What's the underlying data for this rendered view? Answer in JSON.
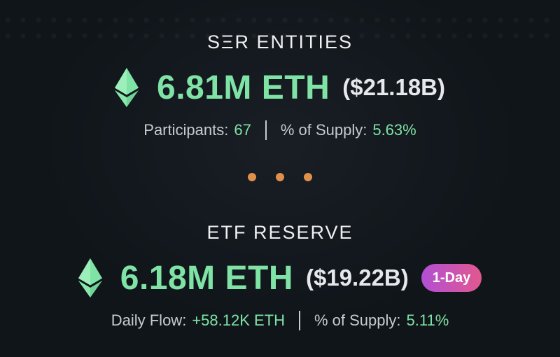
{
  "top": {
    "heading": "SΞR ENTITIES",
    "eth_amount": "6.81M ETH",
    "usd_amount": "($21.18B)",
    "stat1_label": "Participants:",
    "stat1_value": "67",
    "stat2_label": "% of Supply:",
    "stat2_value": "5.63%"
  },
  "bottom": {
    "heading": "ETF RESERVE",
    "eth_amount": "6.18M ETH",
    "usd_amount": "($19.22B)",
    "badge": "1-Day",
    "stat1_label": "Daily Flow:",
    "stat1_value": "+58.12K ETH",
    "stat2_label": "% of Supply:",
    "stat2_value": "5.11%"
  },
  "colors": {
    "accent_green": "#7fe3a6",
    "dot_orange": "#e0904a",
    "badge_start": "#b24fd4",
    "badge_end": "#e2588f"
  }
}
